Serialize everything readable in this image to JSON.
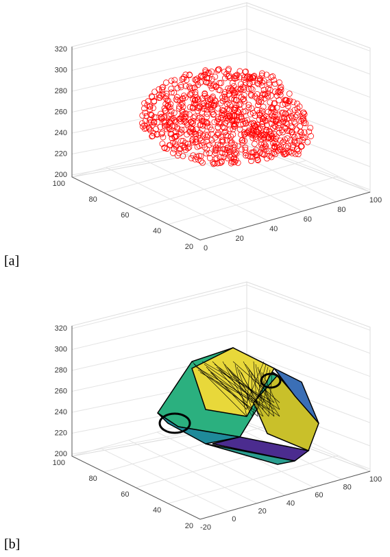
{
  "panels": [
    {
      "label": "[a]",
      "zlim": [
        200,
        320
      ],
      "zticks": [
        200,
        220,
        240,
        260,
        280,
        300,
        320
      ],
      "ylim": [
        20,
        100
      ],
      "yticks": [
        100,
        80,
        60,
        40,
        20
      ],
      "xlim": [
        0,
        100
      ],
      "xticks": [
        0,
        20,
        40,
        60,
        80,
        100
      ]
    },
    {
      "label": "[b]",
      "zlim": [
        200,
        320
      ],
      "zticks": [
        200,
        220,
        240,
        260,
        280,
        300,
        320
      ],
      "ylim": [
        20,
        100
      ],
      "yticks": [
        100,
        80,
        60,
        40,
        20
      ],
      "xlim": [
        -20,
        100
      ],
      "xticks": [
        -20,
        0,
        20,
        40,
        60,
        80,
        100
      ]
    }
  ]
}
